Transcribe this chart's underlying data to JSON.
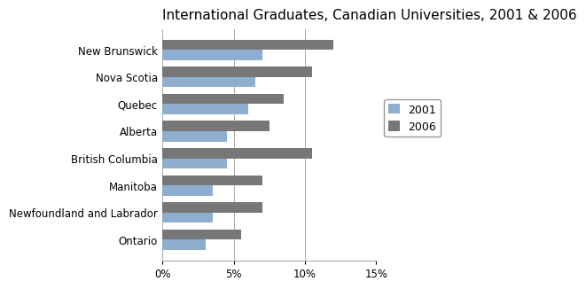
{
  "title": "International Graduates, Canadian Universities, 2001 & 2006",
  "provinces": [
    "New Brunswick",
    "Nova Scotia",
    "Quebec",
    "Alberta",
    "British Columbia",
    "Manitoba",
    "Newfoundland and Labrador",
    "Ontario"
  ],
  "values_2001": [
    7.0,
    6.5,
    6.0,
    4.5,
    4.5,
    3.5,
    3.5,
    3.0
  ],
  "values_2006": [
    12.0,
    10.5,
    8.5,
    7.5,
    10.5,
    7.0,
    7.0,
    5.5
  ],
  "color_2001": "#8eaecf",
  "color_2006": "#777777",
  "legend_labels": [
    "2001",
    "2006"
  ],
  "xlim": [
    0,
    15
  ],
  "xticks": [
    0,
    5,
    10,
    15
  ],
  "xticklabels": [
    "0%",
    "5%",
    "10%",
    "15%"
  ],
  "bar_height": 0.38,
  "title_fontsize": 11,
  "tick_fontsize": 8.5,
  "legend_fontsize": 9
}
